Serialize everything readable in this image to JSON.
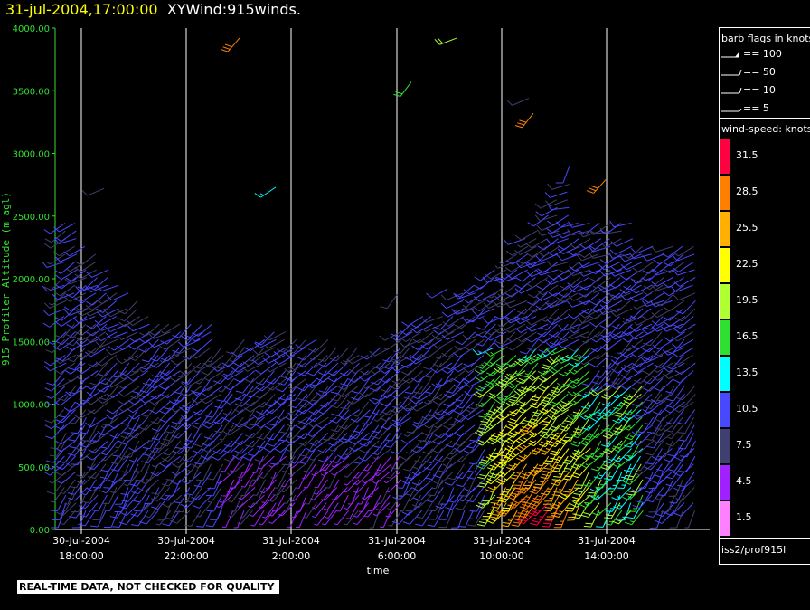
{
  "header": {
    "datetime": "31-jul-2004,17:00:00",
    "plot_name": "XYWind:915winds."
  },
  "legend": {
    "barb_title": "barb flags in knots",
    "barb_items": [
      "== 100",
      "== 50",
      "== 10",
      "== 5"
    ],
    "speed_title": "wind-speed: knots",
    "speed_levels": [
      {
        "label": "31.5",
        "color": "#ff0040"
      },
      {
        "label": "28.5",
        "color": "#ff8000"
      },
      {
        "label": "25.5",
        "color": "#ffb000"
      },
      {
        "label": "22.5",
        "color": "#ffff00"
      },
      {
        "label": "19.5",
        "color": "#b0ff30"
      },
      {
        "label": "16.5",
        "color": "#30e030"
      },
      {
        "label": "13.5",
        "color": "#00ffff"
      },
      {
        "label": "10.5",
        "color": "#4848ff"
      },
      {
        "label": "7.5",
        "color": "#404070"
      },
      {
        "label": "4.5",
        "color": "#a020ff"
      },
      {
        "label": "1.5",
        "color": "#ff80ff"
      }
    ],
    "source": "iss2/prof915l"
  },
  "footer": {
    "qc_notice": "REAL-TIME DATA, NOT CHECKED FOR QUALITY"
  },
  "chart_data": {
    "type": "wind-barb time-height",
    "ylabel": "915 Profiler Altitude (m agl)",
    "xlabel": "time",
    "ylim": [
      0,
      4000
    ],
    "y_ticks": [
      "0.00",
      "500.00",
      "1000.00",
      "1500.00",
      "2000.00",
      "2500.00",
      "3000.00",
      "3500.00",
      "4000.00"
    ],
    "x_ticks": [
      {
        "date": "30-Jul-2004",
        "time": "18:00:00"
      },
      {
        "date": "30-Jul-2004",
        "time": "22:00:00"
      },
      {
        "date": "31-Jul-2004",
        "time": "2:00:00"
      },
      {
        "date": "31-Jul-2004",
        "time": "6:00:00"
      },
      {
        "date": "31-Jul-2004",
        "time": "10:00:00"
      },
      {
        "date": "31-Jul-2004",
        "time": "14:00:00"
      }
    ],
    "x_range_hours": [
      17.0,
      41.0
    ],
    "grid": "vertical lines at time ticks",
    "axis_color": "#30e030"
  }
}
